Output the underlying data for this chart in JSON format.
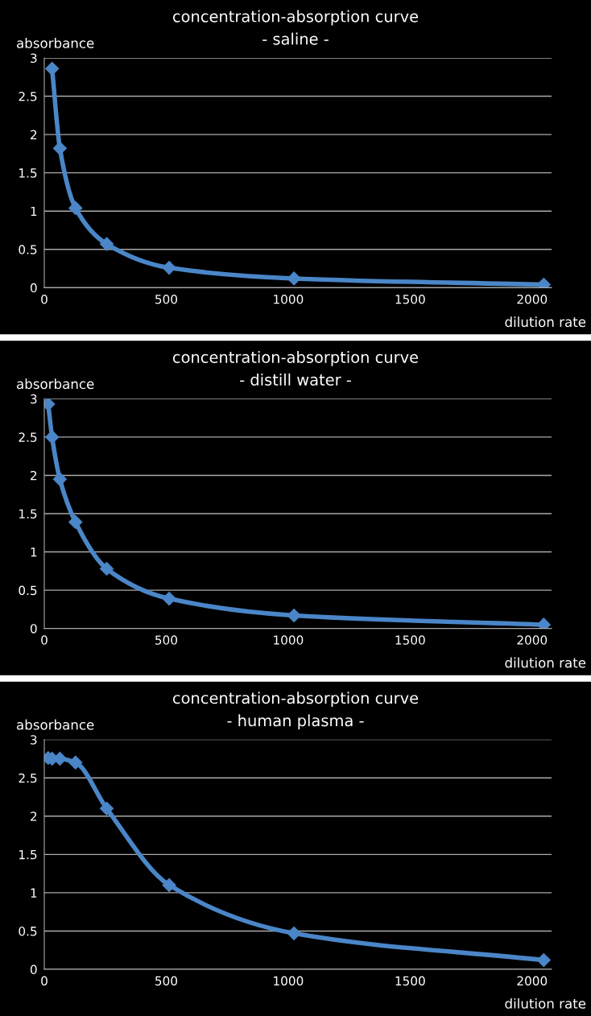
{
  "chart_data": [
    {
      "type": "line",
      "title": "concentration-absorption curve",
      "subtitle": "- saline -",
      "xlabel": "dilution rate",
      "ylabel": "absorbance",
      "x": [
        32,
        64,
        128,
        256,
        512,
        1024,
        2048
      ],
      "series": [
        {
          "color": "#4a86c8",
          "values": [
            2.86,
            1.82,
            1.04,
            0.57,
            0.26,
            0.12,
            0.04
          ]
        }
      ],
      "xlim": [
        0,
        2080
      ],
      "xticks": [
        0,
        500,
        1000,
        1500,
        2000
      ],
      "ylim": [
        0,
        3
      ],
      "yticks": [
        0,
        {
          "value": 0.5,
          "label": "0.5"
        },
        1,
        {
          "value": 1.5,
          "label": "1.5"
        },
        2,
        {
          "value": 2.5,
          "label": "2.5"
        },
        3
      ],
      "grid": "y",
      "marker": "diamond",
      "line_style": "solid",
      "legend": false
    },
    {
      "type": "line",
      "title": "concentration-absorption curve",
      "subtitle": "- distill water -",
      "xlabel": "dilution rate",
      "ylabel": "absorbance",
      "x": [
        16,
        32,
        64,
        128,
        256,
        512,
        1024,
        2048
      ],
      "series": [
        {
          "color": "#4a86c8",
          "values": [
            2.93,
            2.5,
            1.95,
            1.39,
            0.78,
            0.39,
            0.17,
            0.05
          ]
        }
      ],
      "xlim": [
        0,
        2080
      ],
      "xticks": [
        0,
        500,
        1000,
        1500,
        2000
      ],
      "ylim": [
        0,
        3
      ],
      "yticks": [
        0,
        {
          "value": 0.5,
          "label": "0.5"
        },
        1,
        {
          "value": 1.5,
          "label": "1.5"
        },
        2,
        {
          "value": 2.5,
          "label": "2.5"
        },
        3
      ],
      "grid": "y",
      "marker": "diamond",
      "line_style": "solid",
      "legend": false
    },
    {
      "type": "line",
      "title": "concentration-absorption curve",
      "subtitle": "- human plasma -",
      "xlabel": "dilution rate",
      "ylabel": "absorbance",
      "x": [
        16,
        32,
        64,
        128,
        256,
        512,
        1024,
        2048
      ],
      "series": [
        {
          "color": "#4a86c8",
          "values": [
            2.76,
            2.75,
            2.75,
            2.7,
            2.1,
            1.1,
            0.47,
            0.12
          ]
        }
      ],
      "xlim": [
        0,
        2080
      ],
      "xticks": [
        0,
        500,
        1000,
        1500,
        2000
      ],
      "ylim": [
        0,
        3
      ],
      "yticks": [
        0,
        {
          "value": 0.5,
          "label": "0.5"
        },
        1,
        {
          "value": 1.5,
          "label": "1.5"
        },
        2,
        {
          "value": 2.5,
          "label": "2.5"
        },
        3
      ],
      "grid": "y",
      "marker": "diamond",
      "line_style": "solid",
      "legend": false
    }
  ]
}
